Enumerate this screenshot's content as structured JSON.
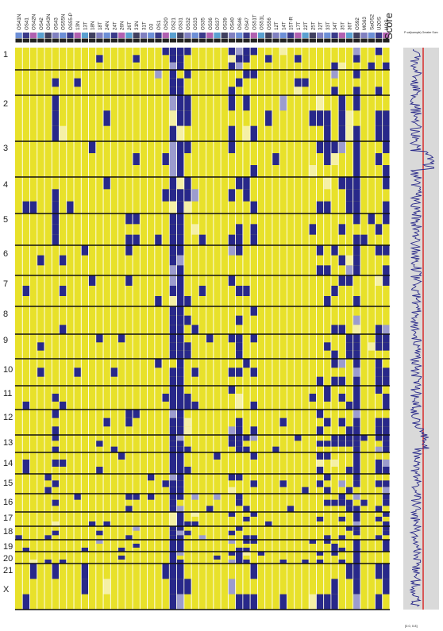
{
  "figure": {
    "samples": [
      "OS41N",
      "OS41",
      "OS42N",
      "OS42",
      "OS43N",
      "OS43",
      "OS55N",
      "OS55-P",
      "13N",
      "13T",
      "18N",
      "18T",
      "24N",
      "24T",
      "26N",
      "26T",
      "31N",
      "31T",
      "O3",
      "OS1",
      "OS20",
      "OS21",
      "OS31",
      "OS32",
      "OS33",
      "OS35",
      "OS36",
      "OS37",
      "OS39",
      "OS40",
      "OS46",
      "OS47",
      "OS51T",
      "OS51L",
      "OS56",
      "12T",
      "14T",
      "15T-R",
      "17T",
      "22T",
      "25T",
      "32T",
      "33T",
      "34T",
      "35T",
      "36T",
      "OS92",
      "MG63",
      "SaOS2",
      "U2OS",
      "HOS"
    ],
    "chromosomes": [
      "1",
      "2",
      "3",
      "4",
      "5",
      "6",
      "7",
      "8",
      "9",
      "10",
      "11",
      "12",
      "13",
      "14",
      "15",
      "16",
      "17",
      "18",
      "19",
      "20",
      "21",
      "X"
    ],
    "score_title": "Score",
    "score_legend": "P-val(sample) Greater Sum",
    "score_axis_label": "[0.0, 0.8]",
    "colors": {
      "background": "#e8e12a",
      "altered": "#28288a",
      "partial_light": "#9c9cce",
      "pale": "#f5f0a6",
      "score_panel": "#d9d9d9",
      "score_line": "#2a2a8a",
      "threshold_line": "#d8201f"
    }
  }
}
